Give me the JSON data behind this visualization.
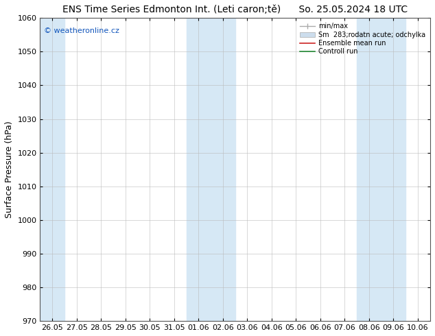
{
  "title": "ENS Time Series Edmonton Int. (Leti caron;tě)",
  "title_right": "So. 25.05.2024 18 UTC",
  "ylabel": "Surface Pressure (hPa)",
  "ylim": [
    970,
    1060
  ],
  "yticks": [
    970,
    980,
    990,
    1000,
    1010,
    1020,
    1030,
    1040,
    1050,
    1060
  ],
  "x_labels": [
    "26.05",
    "27.05",
    "28.05",
    "29.05",
    "30.05",
    "31.05",
    "01.06",
    "02.06",
    "03.06",
    "04.06",
    "05.06",
    "06.06",
    "07.06",
    "08.06",
    "09.06",
    "10.06"
  ],
  "shaded_ranges": [
    [
      0,
      0
    ],
    [
      6,
      7
    ],
    [
      13,
      14
    ]
  ],
  "bg_color": "#ffffff",
  "shade_color": "#d6e8f5",
  "watermark": "© weatheronline.cz",
  "legend_items": [
    {
      "label": "min/max",
      "color": "#aaaaaa",
      "lw": 1.0,
      "style": "line_with_caps"
    },
    {
      "label": "Sm  283;rodatn acute; odchylka",
      "color": "#ccdded",
      "lw": 6,
      "style": "thick_line"
    },
    {
      "label": "Ensemble mean run",
      "color": "#cc2222",
      "lw": 1.2,
      "style": "line"
    },
    {
      "label": "Controll run",
      "color": "#228833",
      "lw": 1.2,
      "style": "line"
    }
  ],
  "title_fontsize": 10,
  "tick_fontsize": 8,
  "label_fontsize": 9,
  "watermark_color": "#1155bb"
}
